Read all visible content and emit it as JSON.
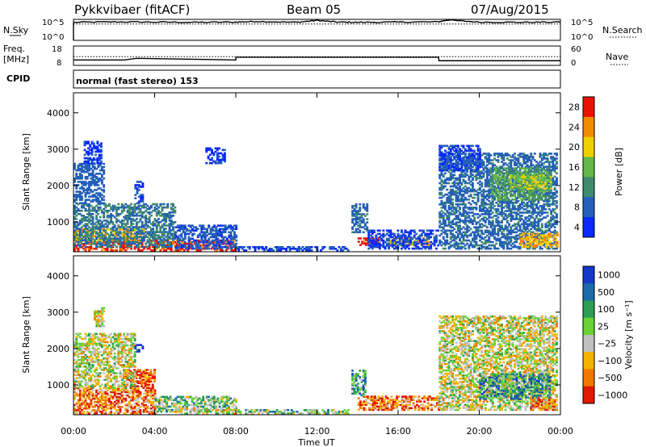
{
  "header": {
    "title": "Pykkvibaer (fitACF)",
    "beam": "Beam 05",
    "date": "07/Aug/2015"
  },
  "strip_labels": {
    "nsky": "N.Sky",
    "nsearch": "N.Search",
    "freq": "Freq.",
    "freq_unit": "[MHz]",
    "nave": "Nave",
    "cpid": "CPID",
    "cpid_text": "normal (fast stereo) 153"
  },
  "chart_data": [
    {
      "type": "line",
      "name": "noise-panel",
      "y_ticks": [
        "10^5",
        "10^0"
      ],
      "right_ticks": [
        "10^5",
        "10^0"
      ],
      "series": [
        {
          "label": "N.Sky",
          "style": "solid",
          "x": [
            0,
            2,
            4,
            6,
            8,
            9,
            11,
            12,
            13,
            14,
            16,
            18,
            18.4,
            20,
            22,
            24
          ],
          "y": [
            0.86,
            0.88,
            0.87,
            0.86,
            0.87,
            0.9,
            0.86,
            0.95,
            0.87,
            0.86,
            0.87,
            0.88,
            0.97,
            0.87,
            0.86,
            0.87
          ]
        },
        {
          "label": "N.Search",
          "style": "dotted",
          "x": [
            0,
            24
          ],
          "y": [
            0.78,
            0.78
          ]
        }
      ]
    },
    {
      "type": "line",
      "name": "freq-nave-panel",
      "y_ticks": [
        "18",
        "8"
      ],
      "right_ticks": [
        "60",
        "0"
      ],
      "series": [
        {
          "label": "Freq.",
          "style": "dotted",
          "x": [
            0,
            24
          ],
          "y": [
            12.5,
            12.5
          ]
        },
        {
          "label": "Nave",
          "style": "solid",
          "x": [
            0,
            2.5,
            3.1,
            8,
            8.01,
            18,
            18.01,
            24
          ],
          "y": [
            10.8,
            10.8,
            11.6,
            10.8,
            12.2,
            12.2,
            10.4,
            10.4
          ]
        }
      ]
    },
    {
      "type": "heatmap",
      "name": "power-panel",
      "xlabel": "",
      "ylabel": "Slant Range [km]",
      "xlim": [
        0,
        24
      ],
      "ylim": [
        180,
        4550
      ],
      "x_ticks": [
        "00:00",
        "04:00",
        "08:00",
        "12:00",
        "16:00",
        "20:00",
        "00:00"
      ],
      "y_ticks": [
        1000,
        2000,
        3000,
        4000
      ],
      "colorbar": {
        "label": "Power [dB]",
        "ticks": [
          4,
          8,
          12,
          16,
          20,
          24,
          28
        ],
        "colors": [
          "#0a28ff",
          "#235fb8",
          "#3f8a6e",
          "#64b74a",
          "#f0d000",
          "#f08a00",
          "#e81200"
        ]
      },
      "regions": [
        {
          "t": [
            0,
            8
          ],
          "r": [
            200,
            480
          ],
          "v": 27
        },
        {
          "t": [
            0,
            3.5
          ],
          "r": [
            460,
            800
          ],
          "v": 22
        },
        {
          "t": [
            0,
            5
          ],
          "r": [
            300,
            1500
          ],
          "v": 10
        },
        {
          "t": [
            0,
            1.5
          ],
          "r": [
            1500,
            2600
          ],
          "v": 8
        },
        {
          "t": [
            0.5,
            1.4
          ],
          "r": [
            2600,
            3200
          ],
          "v": 5
        },
        {
          "t": [
            3,
            3.4
          ],
          "r": [
            1500,
            2100
          ],
          "v": 6
        },
        {
          "t": [
            5,
            8
          ],
          "r": [
            250,
            900
          ],
          "v": 7
        },
        {
          "t": [
            6.5,
            7.4
          ],
          "r": [
            2600,
            3050
          ],
          "v": 5
        },
        {
          "t": [
            8,
            13.5
          ],
          "r": [
            200,
            330
          ],
          "v": 6
        },
        {
          "t": [
            13.7,
            14.5
          ],
          "r": [
            700,
            1500
          ],
          "v": 9
        },
        {
          "t": [
            14,
            15
          ],
          "r": [
            350,
            560
          ],
          "v": 27
        },
        {
          "t": [
            15.5,
            17.5
          ],
          "r": [
            360,
            580
          ],
          "v": 22
        },
        {
          "t": [
            14.5,
            18
          ],
          "r": [
            250,
            750
          ],
          "v": 6
        },
        {
          "t": [
            18,
            23.8
          ],
          "r": [
            250,
            2900
          ],
          "v": 9
        },
        {
          "t": [
            20.5,
            23.5
          ],
          "r": [
            1600,
            2500
          ],
          "v": 14
        },
        {
          "t": [
            21.5,
            23.5
          ],
          "r": [
            1900,
            2300
          ],
          "v": 18
        },
        {
          "t": [
            22,
            23.8
          ],
          "r": [
            300,
            700
          ],
          "v": 22
        },
        {
          "t": [
            18,
            20
          ],
          "r": [
            2400,
            3100
          ],
          "v": 6
        }
      ]
    },
    {
      "type": "heatmap",
      "name": "velocity-panel",
      "xlabel": "Time UT",
      "ylabel": "Slant Range [km]",
      "xlim": [
        0,
        24
      ],
      "ylim": [
        180,
        4550
      ],
      "x_ticks": [
        "00:00",
        "04:00",
        "08:00",
        "12:00",
        "16:00",
        "20:00",
        "00:00"
      ],
      "y_ticks": [
        1000,
        2000,
        3000,
        4000
      ],
      "colorbar": {
        "label": "Velocity [m s⁻¹]",
        "ticks": [
          "1000",
          "500",
          "100",
          "25",
          "−25",
          "−100",
          "−500",
          "−1000"
        ],
        "colors": [
          "#1438c8",
          "#1d6aa8",
          "#2e9d55",
          "#6ad237",
          "#c0c0c0",
          "#f3b400",
          "#f07800",
          "#e01800"
        ]
      },
      "regions": [
        {
          "t": [
            0,
            4
          ],
          "r": [
            200,
            900
          ],
          "v": 6
        },
        {
          "t": [
            2.5,
            4
          ],
          "r": [
            900,
            1400
          ],
          "v": 7
        },
        {
          "t": [
            0,
            3
          ],
          "r": [
            900,
            2400
          ],
          "v": 4
        },
        {
          "t": [
            1,
            1.5
          ],
          "r": [
            2600,
            3100
          ],
          "v": 4
        },
        {
          "t": [
            3,
            3.4
          ],
          "r": [
            1900,
            2100
          ],
          "v": 0
        },
        {
          "t": [
            4,
            8
          ],
          "r": [
            250,
            700
          ],
          "v": 3
        },
        {
          "t": [
            5,
            8
          ],
          "r": [
            200,
            350
          ],
          "v": 4
        },
        {
          "t": [
            8,
            13.5
          ],
          "r": [
            200,
            300
          ],
          "v": 3
        },
        {
          "t": [
            14,
            18
          ],
          "r": [
            300,
            700
          ],
          "v": 6
        },
        {
          "t": [
            13.7,
            14.4
          ],
          "r": [
            700,
            1400
          ],
          "v": 2
        },
        {
          "t": [
            18,
            23.8
          ],
          "r": [
            300,
            2900
          ],
          "v": 4
        },
        {
          "t": [
            20,
            23.5
          ],
          "r": [
            600,
            1300
          ],
          "v": 2
        },
        {
          "t": [
            22.5,
            23.8
          ],
          "r": [
            300,
            650
          ],
          "v": 6
        }
      ]
    }
  ]
}
